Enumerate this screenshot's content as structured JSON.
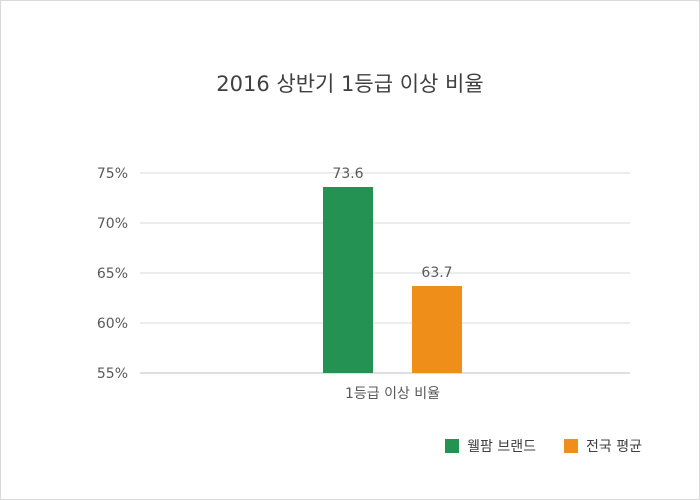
{
  "chart_data": {
    "type": "bar",
    "title": "2016 상반기 1등급 이상 비율",
    "categories": [
      "1등급 이상 비율"
    ],
    "series": [
      {
        "name": "웰팜 브랜드",
        "values": [
          73.6
        ],
        "color": "#249252",
        "label": "73.6"
      },
      {
        "name": "전국 평균",
        "values": [
          63.7
        ],
        "color": "#ef8e19",
        "label": "63.7"
      }
    ],
    "ylim": [
      55,
      75
    ],
    "yticks": [
      55,
      60,
      65,
      70,
      75
    ],
    "ytick_labels": [
      "55%",
      "60%",
      "65%",
      "70%",
      "75%"
    ],
    "grid": true,
    "legend_position": "bottom-right"
  }
}
